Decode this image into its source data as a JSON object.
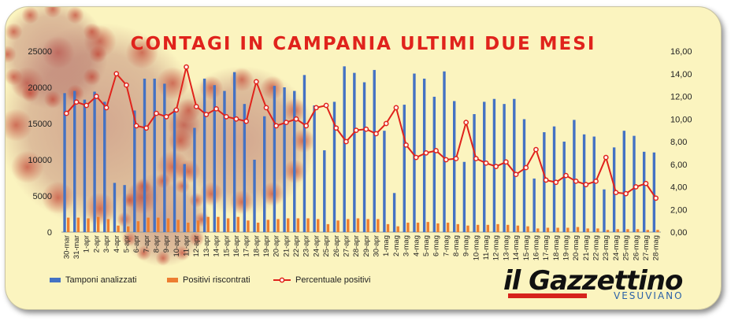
{
  "title": "CONTAGI IN CAMPANIA ULTIMI DUE MESI",
  "logo": {
    "main": "il Gazzettino",
    "sub": "VESUVIANO"
  },
  "colors": {
    "tamponi": "#4472c4",
    "positivi": "#ed7d31",
    "percentuale": "#e0231c",
    "background": "#fbf4bf",
    "title": "#e0231c"
  },
  "chart_data": {
    "type": "bar+line",
    "title": "CONTAGI IN CAMPANIA ULTIMI DUE MESI",
    "grid": false,
    "legend_position": "bottom",
    "y_left": {
      "min": 0,
      "max": 25000,
      "ticks": [
        "0",
        "5000",
        "10000",
        "15000",
        "20000",
        "25000"
      ]
    },
    "y_right": {
      "min": 0,
      "max": 16,
      "ticks": [
        "0,00",
        "2,00",
        "4,00",
        "6,00",
        "8,00",
        "10,00",
        "12,00",
        "14,00",
        "16,00"
      ]
    },
    "categories": [
      "30-mar",
      "31-mar",
      "1-apr",
      "2-apr",
      "3-apr",
      "4-apr",
      "5-apr",
      "6-apr",
      "7-apr",
      "8-apr",
      "9-apr",
      "10-apr",
      "11-apr",
      "12-apr",
      "13-apr",
      "14-apr",
      "15-apr",
      "16-apr",
      "17-apr",
      "18-apr",
      "19-apr",
      "20-apr",
      "21-apr",
      "22-apr",
      "23-apr",
      "24-apr",
      "25-apr",
      "26-apr",
      "27-apr",
      "28-apr",
      "29-apr",
      "30-apr",
      "1-mag",
      "2-mag",
      "3-mag",
      "4-mag",
      "5-mag",
      "6-mag",
      "7-mag",
      "8-mag",
      "9-mag",
      "10-mag",
      "11-mag",
      "12-mag",
      "13-mag",
      "14-mag",
      "15-mag",
      "16-mag",
      "17-mag",
      "18-mag",
      "19-mag",
      "20-mag",
      "21-mag",
      "22-mag",
      "23-mag",
      "24-mag",
      "25-mag",
      "26-mag",
      "27-mag",
      "28-mag"
    ],
    "series": [
      {
        "name": "Tamponi analizzati",
        "type": "bar",
        "axis": "left",
        "values": [
          19200,
          19500,
          18300,
          19400,
          18000,
          6800,
          6500,
          16800,
          21200,
          21200,
          20500,
          17000,
          9400,
          14400,
          21200,
          20300,
          19500,
          22100,
          17700,
          10000,
          16000,
          20200,
          20000,
          19500,
          21700,
          17500,
          11300,
          18000,
          22900,
          22000,
          20700,
          22400,
          14000,
          5400,
          17600,
          21900,
          21200,
          18700,
          22200,
          18100,
          9700,
          16300,
          18000,
          18400,
          17700,
          18400,
          15600,
          7400,
          13800,
          14600,
          12500,
          15500,
          13500,
          13200,
          5900,
          11700,
          14000,
          13300,
          11100,
          11000
        ]
      },
      {
        "name": "Positivi riscontrati",
        "type": "bar",
        "axis": "left",
        "values": [
          2000,
          2000,
          1900,
          2100,
          1800,
          900,
          800,
          1500,
          2000,
          2000,
          1900,
          1700,
          1300,
          1600,
          2100,
          2100,
          1900,
          2100,
          1600,
          1300,
          1700,
          1800,
          1900,
          1900,
          1900,
          1800,
          1100,
          1600,
          1800,
          1900,
          1800,
          1800,
          1100,
          800,
          1300,
          1300,
          1400,
          1200,
          1300,
          1100,
          900,
          1000,
          1000,
          1100,
          1000,
          900,
          800,
          500,
          600,
          600,
          600,
          700,
          500,
          500,
          300,
          400,
          400,
          400,
          300,
          300
        ]
      },
      {
        "name": "Percentuale positivi",
        "type": "line",
        "axis": "right",
        "values": [
          10.5,
          11.5,
          11.2,
          12.0,
          11.0,
          14.0,
          13.0,
          9.4,
          9.2,
          10.5,
          10.2,
          10.8,
          14.6,
          11.1,
          10.4,
          10.9,
          10.2,
          10.0,
          9.8,
          13.3,
          11.0,
          9.4,
          9.7,
          10.0,
          9.4,
          11.0,
          11.2,
          9.2,
          8.0,
          9.0,
          9.1,
          8.7,
          9.6,
          11.0,
          7.7,
          6.6,
          7.0,
          7.2,
          6.4,
          6.5,
          9.7,
          6.5,
          6.1,
          5.8,
          6.2,
          5.1,
          5.7,
          7.3,
          4.6,
          4.4,
          5.0,
          4.5,
          4.2,
          4.5,
          6.6,
          3.5,
          3.4,
          4.0,
          4.3,
          3.0
        ]
      }
    ]
  }
}
